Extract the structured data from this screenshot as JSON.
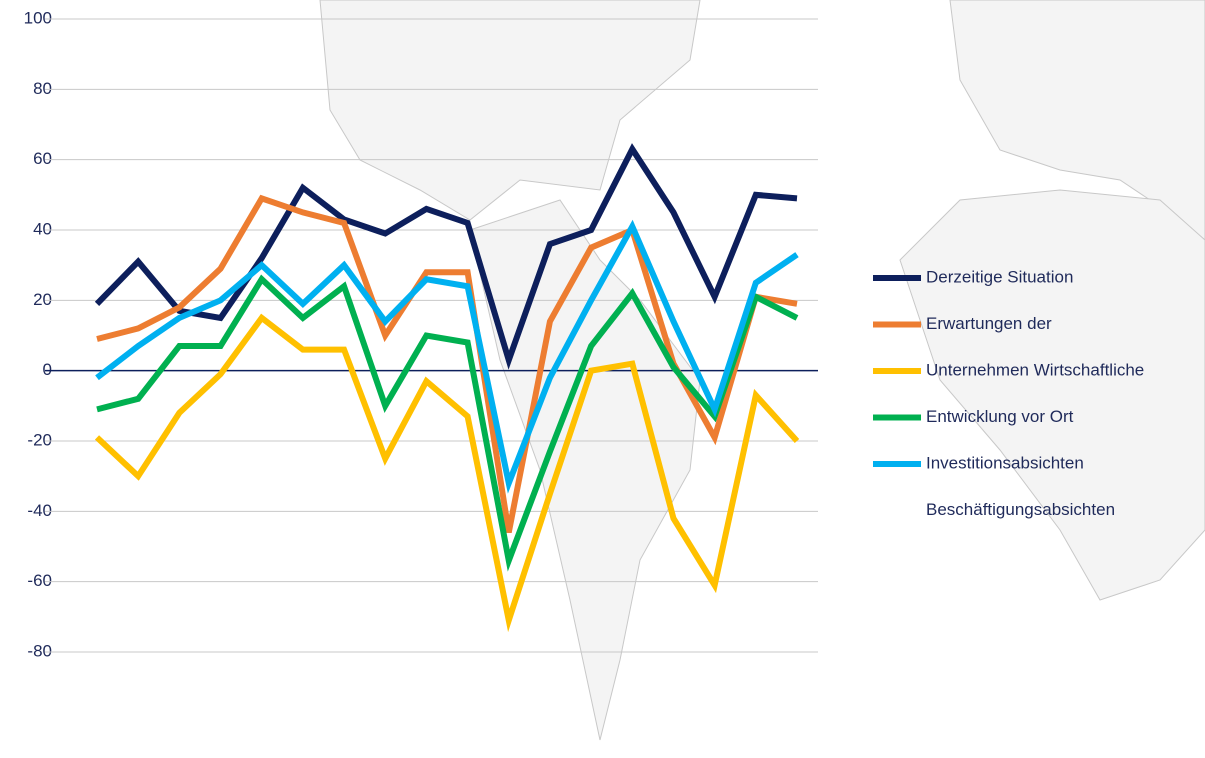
{
  "chart_data": {
    "type": "line",
    "categories": [
      null,
      null,
      null,
      null,
      null,
      null,
      null,
      null,
      null,
      null,
      null,
      null,
      null,
      null,
      null,
      null,
      null,
      null
    ],
    "series": [
      {
        "name": "Derzeitige Situation",
        "color": "#0d1f5c",
        "values": [
          19,
          31,
          17,
          15,
          32,
          52,
          43,
          39,
          46,
          42,
          3,
          36,
          40,
          63,
          45,
          21,
          50,
          49
        ]
      },
      {
        "name": "Erwartungen der",
        "color": "#ed7d31",
        "values": [
          9,
          12,
          18,
          29,
          49,
          45,
          42,
          10,
          28,
          28,
          -46,
          14,
          35,
          40,
          2,
          -19,
          21,
          19
        ]
      },
      {
        "name": "Unternehmen Wirtschaftliche",
        "color": "#ffc000",
        "values": [
          -19,
          -30,
          -12,
          -1,
          15,
          6,
          6,
          -25,
          -3,
          -13,
          -71,
          -35,
          0,
          2,
          -42,
          -61,
          -7,
          -20
        ]
      },
      {
        "name": "Entwicklung vor Ort",
        "color": "#00b050",
        "values": [
          -11,
          -8,
          7,
          7,
          26,
          15,
          24,
          -10,
          10,
          8,
          -54,
          -23,
          7,
          22,
          1,
          -13,
          21,
          15
        ]
      },
      {
        "name": "Investitionsabsichten",
        "color": "#00b0f0",
        "values": [
          -2,
          7,
          15,
          20,
          30,
          19,
          30,
          14,
          26,
          24,
          -32,
          -2,
          20,
          41,
          14,
          -11,
          25,
          33
        ]
      }
    ],
    "legend_extra_text": "Beschäftigungsabsichten",
    "ylim": [
      -80,
      100
    ],
    "yticks": [
      100,
      80,
      60,
      40,
      20,
      0,
      -20,
      -40,
      -60,
      -80
    ],
    "grid": true,
    "legend": "right"
  }
}
